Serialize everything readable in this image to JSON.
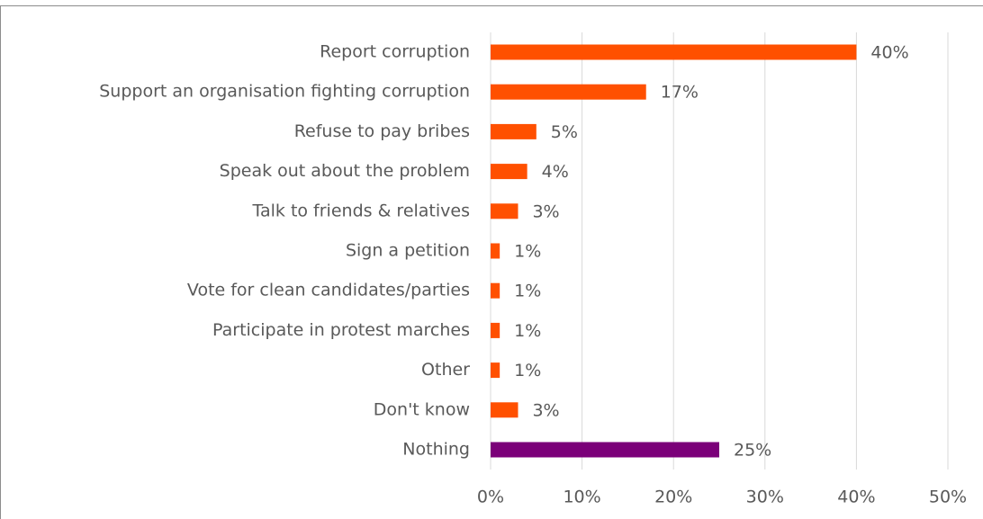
{
  "chart_data": {
    "type": "bar",
    "orientation": "horizontal",
    "categories": [
      "Report corruption",
      "Support an organisation fighting corruption",
      "Refuse to pay bribes",
      "Speak out about the problem",
      "Talk to friends & relatives",
      "Sign a petition",
      "Vote for clean candidates/parties",
      "Participate in protest marches",
      "Other",
      "Don't know",
      "Nothing"
    ],
    "values": [
      40,
      17,
      5,
      4,
      3,
      1,
      1,
      1,
      1,
      3,
      25
    ],
    "value_labels": [
      "40%",
      "17%",
      "5%",
      "4%",
      "3%",
      "1%",
      "1%",
      "1%",
      "1%",
      "3%",
      "25%"
    ],
    "colors": [
      "#ff5000",
      "#ff5000",
      "#ff5000",
      "#ff5000",
      "#ff5000",
      "#ff5000",
      "#ff5000",
      "#ff5000",
      "#ff5000",
      "#ff5000",
      "#7b0079"
    ],
    "xlim": [
      0,
      50
    ],
    "xticks": [
      {
        "value": 0,
        "label": "0%"
      },
      {
        "value": 10,
        "label": "10%"
      },
      {
        "value": 20,
        "label": "20%"
      },
      {
        "value": 30,
        "label": "30%"
      },
      {
        "value": 40,
        "label": "40%"
      },
      {
        "value": 50,
        "label": "50%"
      }
    ],
    "grid": true
  }
}
